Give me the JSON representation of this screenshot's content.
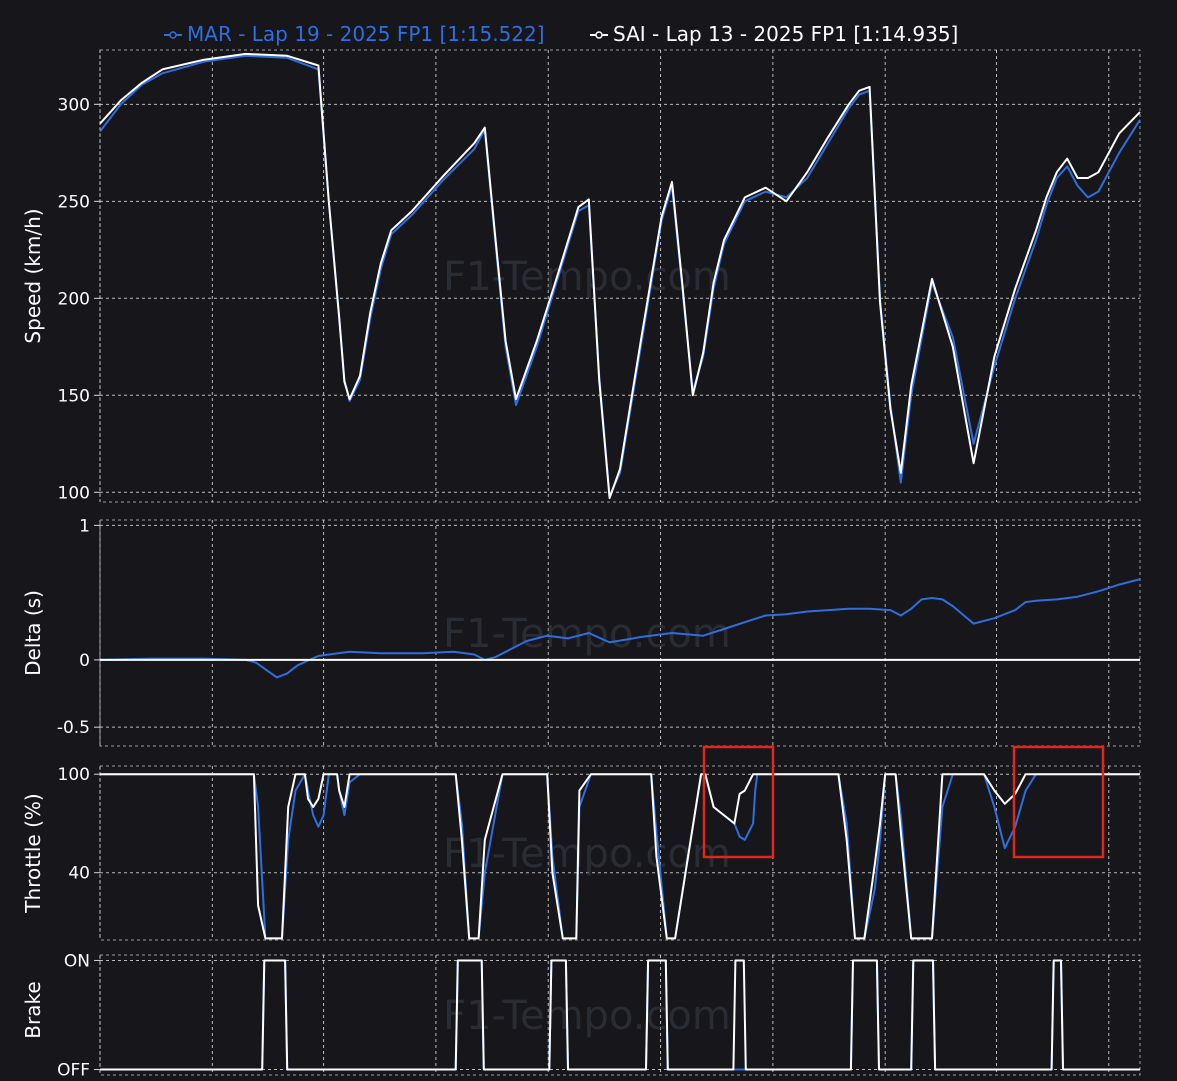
{
  "legend": [
    {
      "label": "MAR - Lap 19 - 2025 FP1 [1:15.522]",
      "color": "#2e6fe0"
    },
    {
      "label": "SAI - Lap 13 - 2025 FP1 [1:14.935]",
      "color": "#ffffff"
    }
  ],
  "watermark": "F1-Tempo.com",
  "colors": {
    "background": "#16161b",
    "mar": "#2e6fe0",
    "sai": "#ffffff",
    "highlight": "#e0261d"
  },
  "chart_data": [
    {
      "type": "line",
      "ylabel": "Speed (km/h)",
      "ylim": [
        95,
        328
      ],
      "yticks": [
        "300",
        "250",
        "200",
        "150",
        "100"
      ],
      "ytick_values": [
        300,
        250,
        200,
        150,
        100
      ],
      "x": [
        0,
        2,
        4,
        6,
        10,
        14,
        18,
        21,
        22,
        23,
        23.5,
        24,
        25,
        26,
        27,
        28,
        30,
        33,
        36,
        37,
        38,
        39,
        40,
        42,
        44,
        46,
        47,
        48,
        49,
        50,
        52,
        54,
        55,
        56,
        57,
        58,
        59,
        60,
        62,
        64,
        66,
        68,
        70,
        72,
        73,
        74,
        75,
        76,
        77,
        78,
        80,
        82,
        84,
        86,
        88,
        90,
        91,
        92,
        93,
        94,
        95,
        96,
        97,
        98,
        100
      ],
      "series": [
        {
          "name": "MAR",
          "values": [
            286,
            300,
            310,
            316,
            322,
            325,
            324,
            318,
            250,
            190,
            158,
            147,
            158,
            190,
            215,
            233,
            243,
            261,
            277,
            287,
            230,
            175,
            145,
            175,
            210,
            245,
            248,
            160,
            98,
            110,
            175,
            240,
            258,
            205,
            152,
            170,
            205,
            228,
            250,
            255,
            252,
            262,
            280,
            298,
            305,
            307,
            200,
            145,
            105,
            150,
            208,
            180,
            125,
            165,
            200,
            230,
            248,
            262,
            268,
            258,
            252,
            255,
            265,
            275,
            292
          ]
        },
        {
          "name": "SAI",
          "values": [
            290,
            302,
            311,
            318,
            323,
            326,
            325,
            320,
            250,
            190,
            157,
            148,
            160,
            193,
            218,
            235,
            245,
            263,
            280,
            288,
            232,
            178,
            148,
            178,
            212,
            247,
            251,
            158,
            97,
            112,
            178,
            242,
            260,
            207,
            150,
            172,
            208,
            230,
            252,
            257,
            250,
            265,
            283,
            300,
            307,
            309,
            198,
            143,
            110,
            155,
            210,
            175,
            115,
            170,
            205,
            235,
            252,
            265,
            272,
            262,
            262,
            265,
            275,
            285,
            296
          ]
        }
      ]
    },
    {
      "type": "line",
      "ylabel": "Delta (s)",
      "ylim": [
        -0.64,
        1.04
      ],
      "yticks": [
        "1",
        "0",
        "-0.5"
      ],
      "ytick_values": [
        1,
        0,
        -0.5
      ],
      "x": [
        0,
        5,
        10,
        14,
        15,
        17,
        18,
        19,
        21,
        24,
        27,
        31,
        34,
        36,
        37,
        38,
        41,
        43,
        45,
        47,
        49,
        52,
        55,
        58,
        60,
        62,
        64,
        66,
        68,
        70,
        72,
        74,
        76,
        77,
        78,
        79,
        80,
        81,
        82,
        84,
        86,
        88,
        89,
        90,
        92,
        94,
        96,
        98,
        100
      ],
      "series": [
        {
          "name": "MAR",
          "values": [
            0,
            0.01,
            0.01,
            0,
            -0.02,
            -0.13,
            -0.1,
            -0.04,
            0.03,
            0.06,
            0.05,
            0.05,
            0.06,
            0.04,
            0,
            0.02,
            0.14,
            0.18,
            0.16,
            0.2,
            0.13,
            0.17,
            0.2,
            0.18,
            0.23,
            0.28,
            0.33,
            0.34,
            0.36,
            0.37,
            0.38,
            0.38,
            0.37,
            0.33,
            0.38,
            0.45,
            0.46,
            0.45,
            0.4,
            0.27,
            0.31,
            0.37,
            0.43,
            0.44,
            0.45,
            0.47,
            0.51,
            0.56,
            0.6
          ]
        },
        {
          "name": "SAI",
          "values": [
            0,
            0,
            0,
            0,
            0,
            0,
            0,
            0,
            0,
            0,
            0,
            0,
            0,
            0,
            0,
            0,
            0,
            0,
            0,
            0,
            0,
            0,
            0,
            0,
            0,
            0,
            0,
            0,
            0,
            0,
            0,
            0,
            0,
            0,
            0,
            0,
            0,
            0,
            0,
            0,
            0,
            0,
            0,
            0,
            0,
            0,
            0,
            0,
            0
          ]
        }
      ]
    },
    {
      "type": "line",
      "ylabel": "Throttle (%)",
      "ylim": [
        -1,
        105
      ],
      "yticks": [
        "100",
        "40"
      ],
      "ytick_values": [
        100,
        40
      ],
      "x": [
        0,
        14.8,
        15.2,
        15.9,
        17.5,
        18.1,
        18.8,
        19.7,
        20,
        20.5,
        21,
        21.5,
        22,
        22.8,
        23,
        23.5,
        24,
        25,
        25.5,
        34.2,
        34.8,
        35.5,
        36.4,
        37,
        38.7,
        39,
        43,
        43.5,
        44.5,
        45.8,
        46.1,
        47.2,
        53,
        53.5,
        54.5,
        55.3,
        57.8,
        58.2,
        59,
        61,
        61.5,
        62,
        62.8,
        63,
        63.2,
        63.5,
        64,
        66,
        67,
        71,
        71.8,
        72.6,
        73.5,
        74.5,
        75,
        75.5,
        76.5,
        77,
        78,
        80,
        81,
        82,
        82.5,
        83,
        84,
        85,
        86,
        87,
        88,
        89,
        90,
        91,
        100
      ],
      "series": [
        {
          "name": "MAR",
          "values": [
            100,
            100,
            80,
            0,
            0,
            60,
            90,
            100,
            90,
            75,
            68,
            75,
            100,
            100,
            90,
            75,
            95,
            100,
            100,
            100,
            70,
            0,
            0,
            40,
            100,
            100,
            100,
            50,
            0,
            0,
            80,
            100,
            100,
            65,
            0,
            0,
            100,
            100,
            80,
            70,
            62,
            60,
            70,
            90,
            100,
            100,
            100,
            100,
            100,
            100,
            70,
            0,
            0,
            30,
            60,
            100,
            100,
            75,
            0,
            0,
            80,
            100,
            100,
            100,
            100,
            100,
            80,
            55,
            68,
            90,
            100,
            100,
            100
          ]
        },
        {
          "name": "SAI",
          "values": [
            100,
            100,
            20,
            0,
            0,
            80,
            100,
            100,
            85,
            80,
            85,
            100,
            100,
            100,
            90,
            80,
            100,
            100,
            100,
            100,
            60,
            0,
            0,
            60,
            100,
            100,
            100,
            40,
            0,
            0,
            90,
            100,
            100,
            50,
            0,
            0,
            100,
            100,
            80,
            70,
            88,
            90,
            100,
            100,
            100,
            100,
            100,
            100,
            100,
            100,
            60,
            0,
            0,
            45,
            70,
            100,
            100,
            65,
            0,
            0,
            100,
            100,
            100,
            100,
            100,
            100,
            90,
            82,
            88,
            100,
            100,
            100,
            100
          ]
        }
      ]
    },
    {
      "type": "line",
      "ylabel": "Brake",
      "ylim": [
        -0.05,
        1.05
      ],
      "yticks": [
        "ON",
        "OFF"
      ],
      "ytick_values": [
        1,
        0
      ],
      "x": [
        0,
        15.6,
        15.8,
        17.8,
        18,
        34.2,
        34.4,
        36.7,
        36.9,
        43.2,
        43.4,
        44.8,
        45,
        52.5,
        52.7,
        54.4,
        54.6,
        60.9,
        61.1,
        61.9,
        62.1,
        72.2,
        72.4,
        74.7,
        74.9,
        78,
        78.2,
        80.1,
        80.3,
        91.5,
        91.7,
        92.4,
        92.6,
        100
      ],
      "series": [
        {
          "name": "MAR",
          "values": [
            0,
            0,
            1,
            1,
            0,
            0,
            1,
            1,
            0,
            0,
            1,
            1,
            0,
            0,
            1,
            1,
            0,
            0,
            0,
            0,
            0,
            0,
            1,
            1,
            0,
            0,
            1,
            1,
            0,
            0,
            1,
            1,
            0,
            0
          ]
        },
        {
          "name": "SAI",
          "values": [
            0,
            0,
            1,
            1,
            0,
            0,
            1,
            1,
            0,
            0,
            1,
            1,
            0,
            0,
            1,
            1,
            0,
            0,
            1,
            1,
            0,
            0,
            1,
            1,
            0,
            0,
            1,
            1,
            0,
            0,
            1,
            1,
            0,
            0
          ]
        }
      ]
    }
  ]
}
